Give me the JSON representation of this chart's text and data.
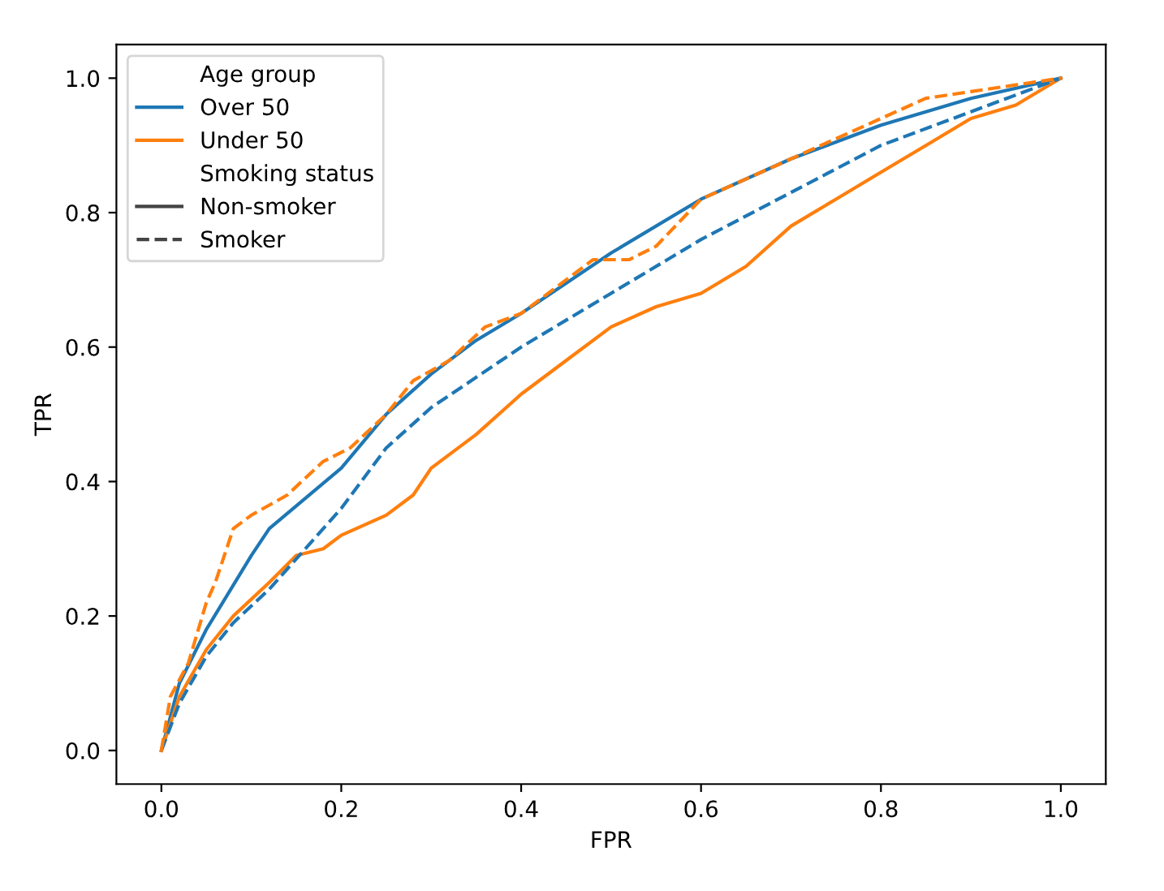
{
  "chart_data": {
    "type": "line",
    "xlabel": "FPR",
    "ylabel": "TPR",
    "legend": "top left",
    "legend_title": "Age group",
    "annotations": [
      "Smoking status",
      "Non-smoker",
      "Smoker"
    ],
    "xlim": [
      -0.05,
      1.05
    ],
    "ylim": [
      -0.05,
      1.05
    ],
    "xticks": [
      {
        "value": 0,
        "label": "0.0"
      },
      0.2,
      0.4,
      0.6,
      0.8,
      {
        "value": 1,
        "label": "1.0"
      }
    ],
    "yticks": [
      {
        "value": 0,
        "label": "0.0"
      },
      0.2,
      0.4,
      0.6,
      0.8,
      {
        "value": 1,
        "label": "1.0"
      }
    ],
    "grid": false,
    "series": [
      {
        "name": "Over 50",
        "color": "#1f77b4",
        "line_style": "solid",
        "x": [
          0,
          0.02,
          0.05,
          0.1,
          0.12,
          0.2,
          0.25,
          0.3,
          0.35,
          0.4,
          0.5,
          0.6,
          0.7,
          0.8,
          0.9,
          1
        ],
        "values": [
          0,
          0.1,
          0.18,
          0.29,
          0.33,
          0.42,
          0.5,
          0.56,
          0.61,
          0.65,
          0.74,
          0.82,
          0.88,
          0.93,
          0.97,
          1
        ]
      },
      {
        "name": "Under 50",
        "color": "#ff7f0e",
        "line_style": "solid",
        "x": [
          0,
          0.02,
          0.05,
          0.08,
          0.12,
          0.15,
          0.18,
          0.2,
          0.25,
          0.28,
          0.3,
          0.35,
          0.4,
          0.45,
          0.5,
          0.55,
          0.6,
          0.65,
          0.7,
          0.75,
          0.8,
          0.85,
          0.9,
          0.95,
          1
        ],
        "values": [
          0,
          0.08,
          0.15,
          0.2,
          0.25,
          0.29,
          0.3,
          0.32,
          0.35,
          0.38,
          0.42,
          0.47,
          0.53,
          0.58,
          0.63,
          0.66,
          0.68,
          0.72,
          0.78,
          0.82,
          0.86,
          0.9,
          0.94,
          0.96,
          1
        ]
      },
      {
        "color": "#1f77b4",
        "line_style": "dashed",
        "x": [
          0,
          0.02,
          0.05,
          0.08,
          0.12,
          0.16,
          0.2,
          0.25,
          0.3,
          0.4,
          0.5,
          0.6,
          0.7,
          0.8,
          0.9,
          1
        ],
        "values": [
          0,
          0.07,
          0.14,
          0.19,
          0.24,
          0.3,
          0.36,
          0.45,
          0.51,
          0.6,
          0.68,
          0.76,
          0.83,
          0.9,
          0.95,
          1
        ]
      },
      {
        "color": "#ff7f0e",
        "line_style": "dashed",
        "x": [
          0,
          0.01,
          0.03,
          0.05,
          0.06,
          0.08,
          0.1,
          0.14,
          0.18,
          0.21,
          0.25,
          0.28,
          0.32,
          0.36,
          0.4,
          0.45,
          0.48,
          0.52,
          0.55,
          0.6,
          0.65,
          0.7,
          0.75,
          0.8,
          0.85,
          0.9,
          0.95,
          1
        ],
        "values": [
          0,
          0.08,
          0.13,
          0.22,
          0.25,
          0.33,
          0.35,
          0.38,
          0.43,
          0.45,
          0.5,
          0.55,
          0.58,
          0.63,
          0.65,
          0.7,
          0.73,
          0.73,
          0.75,
          0.82,
          0.85,
          0.88,
          0.91,
          0.94,
          0.97,
          0.98,
          0.99,
          1
        ]
      }
    ]
  }
}
